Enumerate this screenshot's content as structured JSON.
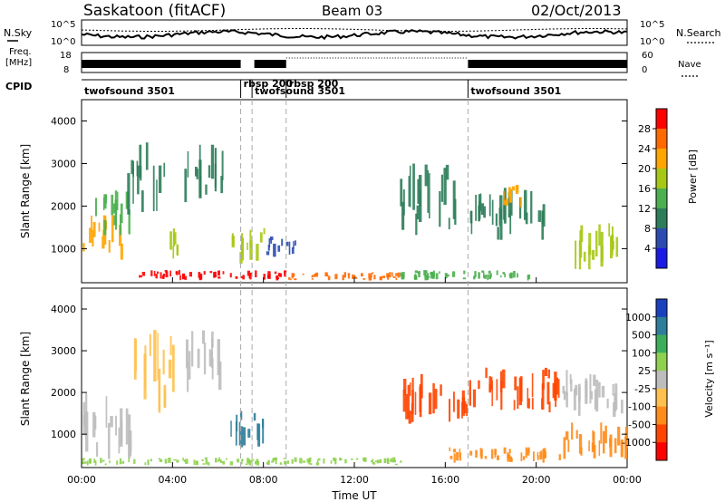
{
  "header": {
    "title": "Saskatoon (fitACF)",
    "beam": "Beam 03",
    "date": "02/Oct/2013"
  },
  "top_panels": {
    "nsky_label": "N.Sky",
    "nsky_ticks": [
      "10^5",
      "10^0"
    ],
    "nsearch_label": "N.Search",
    "nsearch_ticks": [
      "10^5",
      "10^0"
    ],
    "freq_label_1": "Freq.",
    "freq_label_2": "[MHz]",
    "freq_ticks": [
      "18",
      "8"
    ],
    "nave_label": "Nave",
    "nave_ticks": [
      "60",
      "0"
    ],
    "cpid_label": "CPID",
    "cpid_segments": [
      {
        "label": "twofsound 3501",
        "start_hour": 0.0
      },
      {
        "label": "rbsp 200",
        "start_hour": 7.0
      },
      {
        "label": "twofsound 3501",
        "start_hour": 7.5
      },
      {
        "label": "rbsp 200",
        "start_hour": 9.0
      },
      {
        "label": "twofsound 3501",
        "start_hour": 17.0
      }
    ],
    "cpid_boundaries_hours": [
      7.0,
      7.5,
      9.0,
      17.0
    ]
  },
  "chart_data": [
    {
      "type": "heatmap",
      "name": "power-panel",
      "x_unit": "hours UT",
      "xlim": [
        0,
        24
      ],
      "ylim": [
        200,
        4500
      ],
      "ylabel": "Slant Range [km]",
      "ytick_values": [
        1000,
        2000,
        3000,
        4000
      ],
      "colorbar_label": "Power [dB]",
      "colorbar_ticks": [
        "4",
        "8",
        "12",
        "16",
        "20",
        "24",
        "28"
      ],
      "colorbar_colors": [
        "#1a1ae6",
        "#2b4bb0",
        "#2e7d5a",
        "#4caf50",
        "#a6c814",
        "#ffa500",
        "#ff6a00",
        "#ff0000"
      ],
      "regions": [
        {
          "x": [
            0.0,
            1.8
          ],
          "y": [
            700,
            1800
          ],
          "level": 5
        },
        {
          "x": [
            0.3,
            2.2
          ],
          "y": [
            1300,
            2400
          ],
          "level": 3
        },
        {
          "x": [
            2.0,
            3.7
          ],
          "y": [
            1800,
            3500
          ],
          "level": 2
        },
        {
          "x": [
            3.7,
            4.4
          ],
          "y": [
            700,
            1500
          ],
          "level": 4
        },
        {
          "x": [
            4.5,
            6.2
          ],
          "y": [
            2000,
            3500
          ],
          "level": 2
        },
        {
          "x": [
            6.6,
            8.0
          ],
          "y": [
            600,
            1500
          ],
          "level": 4
        },
        {
          "x": [
            2.5,
            9.0
          ],
          "y": [
            250,
            500
          ],
          "level": 7
        },
        {
          "x": [
            9.0,
            14.0
          ],
          "y": [
            250,
            450
          ],
          "level": 6
        },
        {
          "x": [
            14.0,
            20.0
          ],
          "y": [
            250,
            500
          ],
          "level": 3
        },
        {
          "x": [
            8.0,
            9.5
          ],
          "y": [
            800,
            1300
          ],
          "level": 1
        },
        {
          "x": [
            14.0,
            16.5
          ],
          "y": [
            1200,
            3000
          ],
          "level": 2
        },
        {
          "x": [
            17.0,
            20.5
          ],
          "y": [
            1200,
            2500
          ],
          "level": 2
        },
        {
          "x": [
            18.5,
            19.8
          ],
          "y": [
            1900,
            2500
          ],
          "level": 5
        },
        {
          "x": [
            21.5,
            23.8
          ],
          "y": [
            500,
            1600
          ],
          "level": 4
        }
      ]
    },
    {
      "type": "heatmap",
      "name": "velocity-panel",
      "x_unit": "hours UT",
      "xlim": [
        0,
        24
      ],
      "ylim": [
        200,
        4500
      ],
      "ylabel": "Slant Range [km]",
      "ytick_values": [
        1000,
        2000,
        3000,
        4000
      ],
      "xlabel": "Time UT",
      "xtick_labels": [
        "00:00",
        "04:00",
        "08:00",
        "12:00",
        "16:00",
        "20:00",
        "00:00"
      ],
      "xtick_values": [
        0,
        4,
        8,
        12,
        16,
        20,
        24
      ],
      "colorbar_label": "Velocity [m s⁻¹]",
      "colorbar_ticks": [
        "1000",
        "500",
        "100",
        "25",
        "-25",
        "-100",
        "-500",
        "-1000"
      ],
      "colorbar_colors": [
        "#1a3fbf",
        "#2e7d9a",
        "#3cae5a",
        "#8fd14f",
        "#bdbdbd",
        "#ffc04d",
        "#ff8c1a",
        "#ff4500",
        "#ff0000"
      ],
      "regions": [
        {
          "x": [
            0.0,
            2.2
          ],
          "y": [
            300,
            2000
          ],
          "level": 4
        },
        {
          "x": [
            2.2,
            4.0
          ],
          "y": [
            1500,
            3500
          ],
          "level": 5
        },
        {
          "x": [
            4.5,
            6.2
          ],
          "y": [
            2000,
            3500
          ],
          "level": 4
        },
        {
          "x": [
            6.5,
            8.0
          ],
          "y": [
            600,
            1600
          ],
          "level": 1
        },
        {
          "x": [
            0.0,
            14.0
          ],
          "y": [
            250,
            450
          ],
          "level": 3
        },
        {
          "x": [
            14.0,
            17.0
          ],
          "y": [
            1200,
            2500
          ],
          "level": 7
        },
        {
          "x": [
            17.0,
            21.0
          ],
          "y": [
            1500,
            2600
          ],
          "level": 7
        },
        {
          "x": [
            16.0,
            21.0
          ],
          "y": [
            300,
            700
          ],
          "level": 6
        },
        {
          "x": [
            21.0,
            24.0
          ],
          "y": [
            400,
            1300
          ],
          "level": 6
        },
        {
          "x": [
            21.0,
            24.0
          ],
          "y": [
            1400,
            2600
          ],
          "level": 4
        }
      ]
    }
  ]
}
